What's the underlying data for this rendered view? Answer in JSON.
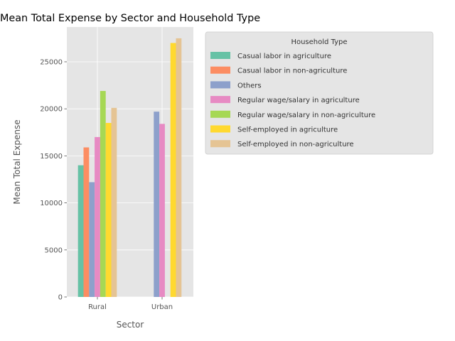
{
  "chart_data": {
    "type": "bar",
    "title": "Mean Total Expense by Sector and Household Type",
    "xlabel": "Sector",
    "ylabel": "Mean Total Expense",
    "categories": [
      "Rural",
      "Urban"
    ],
    "ylim": [
      0,
      28700
    ],
    "yticks": [
      0,
      5000,
      10000,
      15000,
      20000,
      25000
    ],
    "grid": true,
    "legend_title": "Household Type",
    "legend_position": "outside-right-top",
    "series": [
      {
        "name": "Casual labor in agriculture",
        "color": "#66c2a5",
        "values": [
          14000,
          null
        ]
      },
      {
        "name": "Casual labor in non-agriculture",
        "color": "#fc8d62",
        "values": [
          15900,
          null
        ]
      },
      {
        "name": "Others",
        "color": "#8da0cb",
        "values": [
          12200,
          19700
        ]
      },
      {
        "name": "Regular wage/salary in agriculture",
        "color": "#e78ac3",
        "values": [
          17000,
          18400
        ]
      },
      {
        "name": "Regular wage/salary in non-agriculture",
        "color": "#a6d854",
        "values": [
          21900,
          null
        ]
      },
      {
        "name": "Self-employed in agriculture",
        "color": "#ffd92f",
        "values": [
          18500,
          27000
        ]
      },
      {
        "name": "Self-employed in non-agriculture",
        "color": "#e5c494",
        "values": [
          20100,
          27500
        ]
      }
    ]
  }
}
